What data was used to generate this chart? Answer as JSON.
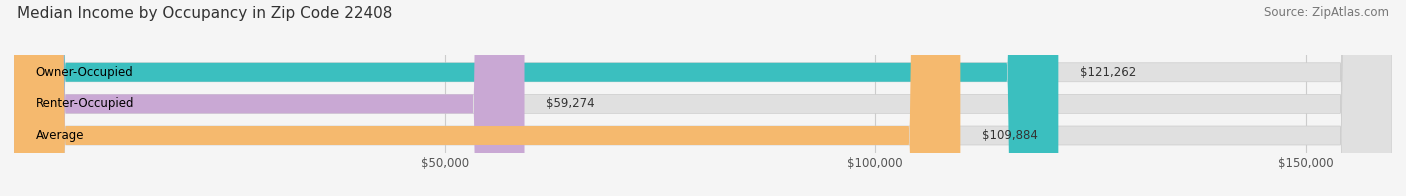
{
  "title": "Median Income by Occupancy in Zip Code 22408",
  "source": "Source: ZipAtlas.com",
  "categories": [
    "Owner-Occupied",
    "Renter-Occupied",
    "Average"
  ],
  "values": [
    121262,
    59274,
    109884
  ],
  "bar_colors": [
    "#3bbfbf",
    "#c9a8d4",
    "#f5b96e"
  ],
  "bar_height": 0.6,
  "xlim": [
    0,
    160000
  ],
  "xtick_positions": [
    50000,
    100000,
    150000
  ],
  "xtick_labels": [
    "$50,000",
    "$100,000",
    "$150,000"
  ],
  "value_labels": [
    "$121,262",
    "$59,274",
    "$109,884"
  ],
  "bg_color": "#f5f5f5",
  "bar_bg_color": "#e0e0e0",
  "title_fontsize": 11,
  "source_fontsize": 8.5,
  "label_fontsize": 8.5,
  "tick_fontsize": 8.5
}
